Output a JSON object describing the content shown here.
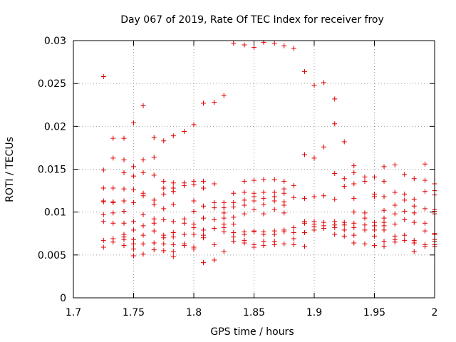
{
  "chart_data": {
    "type": "scatter",
    "title": "Day 067 of 2019, Rate Of TEC Index for receiver froy",
    "xlabel": "GPS time / hours",
    "ylabel": "ROTI / TECUs",
    "xlim": [
      1.7,
      2.0
    ],
    "ylim": [
      0,
      0.03
    ],
    "xticks": [
      1.7,
      1.75,
      1.8,
      1.85,
      1.9,
      1.95,
      2.0
    ],
    "xtick_labels": [
      "1.7",
      "1.75",
      "1.8",
      "1.85",
      "1.9",
      "1.95",
      "2"
    ],
    "yticks": [
      0,
      0.005,
      0.01,
      0.015,
      0.02,
      0.025,
      0.03
    ],
    "ytick_labels": [
      "0",
      "0.005",
      "0.01",
      "0.015",
      "0.02",
      "0.025",
      "0.03"
    ],
    "grid": true,
    "marker": "plus",
    "color": "#e00000",
    "series": [
      {
        "name": "ROTI",
        "points": [
          [
            1.725,
            0.0258
          ],
          [
            1.725,
            0.0149
          ],
          [
            1.725,
            0.0128
          ],
          [
            1.725,
            0.0113
          ],
          [
            1.725,
            0.0112
          ],
          [
            1.725,
            0.0097
          ],
          [
            1.725,
            0.0089
          ],
          [
            1.725,
            0.0067
          ],
          [
            1.725,
            0.0059
          ],
          [
            1.733,
            0.0186
          ],
          [
            1.733,
            0.0163
          ],
          [
            1.733,
            0.0128
          ],
          [
            1.733,
            0.0112
          ],
          [
            1.733,
            0.0111
          ],
          [
            1.733,
            0.0099
          ],
          [
            1.733,
            0.0087
          ],
          [
            1.733,
            0.0069
          ],
          [
            1.733,
            0.0065
          ],
          [
            1.742,
            0.0186
          ],
          [
            1.742,
            0.0161
          ],
          [
            1.742,
            0.0146
          ],
          [
            1.742,
            0.0127
          ],
          [
            1.742,
            0.0113
          ],
          [
            1.742,
            0.0101
          ],
          [
            1.742,
            0.0087
          ],
          [
            1.742,
            0.0074
          ],
          [
            1.742,
            0.0071
          ],
          [
            1.742,
            0.0068
          ],
          [
            1.742,
            0.0061
          ],
          [
            1.75,
            0.0204
          ],
          [
            1.75,
            0.0153
          ],
          [
            1.75,
            0.0142
          ],
          [
            1.75,
            0.0126
          ],
          [
            1.75,
            0.0111
          ],
          [
            1.75,
            0.0089
          ],
          [
            1.75,
            0.0079
          ],
          [
            1.75,
            0.0068
          ],
          [
            1.75,
            0.0063
          ],
          [
            1.75,
            0.0057
          ],
          [
            1.75,
            0.0049
          ],
          [
            1.758,
            0.0224
          ],
          [
            1.758,
            0.0161
          ],
          [
            1.758,
            0.0146
          ],
          [
            1.758,
            0.0122
          ],
          [
            1.758,
            0.0119
          ],
          [
            1.758,
            0.0097
          ],
          [
            1.758,
            0.0084
          ],
          [
            1.758,
            0.0073
          ],
          [
            1.758,
            0.0063
          ],
          [
            1.758,
            0.0051
          ],
          [
            1.767,
            0.0187
          ],
          [
            1.767,
            0.0164
          ],
          [
            1.767,
            0.0143
          ],
          [
            1.767,
            0.0114
          ],
          [
            1.767,
            0.0109
          ],
          [
            1.767,
            0.0092
          ],
          [
            1.767,
            0.0087
          ],
          [
            1.767,
            0.0078
          ],
          [
            1.767,
            0.0064
          ],
          [
            1.767,
            0.0056
          ],
          [
            1.775,
            0.0183
          ],
          [
            1.775,
            0.0136
          ],
          [
            1.775,
            0.0128
          ],
          [
            1.775,
            0.0121
          ],
          [
            1.775,
            0.0104
          ],
          [
            1.775,
            0.0091
          ],
          [
            1.775,
            0.0073
          ],
          [
            1.775,
            0.007
          ],
          [
            1.775,
            0.0063
          ],
          [
            1.775,
            0.0055
          ],
          [
            1.783,
            0.0189
          ],
          [
            1.783,
            0.0134
          ],
          [
            1.783,
            0.0128
          ],
          [
            1.783,
            0.0124
          ],
          [
            1.783,
            0.0109
          ],
          [
            1.783,
            0.0089
          ],
          [
            1.783,
            0.0076
          ],
          [
            1.783,
            0.0071
          ],
          [
            1.783,
            0.0062
          ],
          [
            1.783,
            0.0054
          ],
          [
            1.783,
            0.0048
          ],
          [
            1.792,
            0.0194
          ],
          [
            1.792,
            0.0134
          ],
          [
            1.792,
            0.0131
          ],
          [
            1.792,
            0.0092
          ],
          [
            1.792,
            0.0087
          ],
          [
            1.792,
            0.0074
          ],
          [
            1.792,
            0.0063
          ],
          [
            1.792,
            0.0061
          ],
          [
            1.8,
            0.0202
          ],
          [
            1.8,
            0.0136
          ],
          [
            1.8,
            0.0132
          ],
          [
            1.8,
            0.0113
          ],
          [
            1.8,
            0.0101
          ],
          [
            1.8,
            0.0086
          ],
          [
            1.8,
            0.0082
          ],
          [
            1.8,
            0.0074
          ],
          [
            1.8,
            0.0059
          ],
          [
            1.8,
            0.0057
          ],
          [
            1.808,
            0.0227
          ],
          [
            1.808,
            0.0136
          ],
          [
            1.808,
            0.0128
          ],
          [
            1.808,
            0.0107
          ],
          [
            1.808,
            0.0093
          ],
          [
            1.808,
            0.0079
          ],
          [
            1.808,
            0.0073
          ],
          [
            1.808,
            0.007
          ],
          [
            1.808,
            0.0041
          ],
          [
            1.817,
            0.0228
          ],
          [
            1.817,
            0.0133
          ],
          [
            1.817,
            0.0111
          ],
          [
            1.817,
            0.0105
          ],
          [
            1.817,
            0.0091
          ],
          [
            1.817,
            0.0081
          ],
          [
            1.817,
            0.0062
          ],
          [
            1.817,
            0.0044
          ],
          [
            1.825,
            0.0236
          ],
          [
            1.825,
            0.0111
          ],
          [
            1.825,
            0.0105
          ],
          [
            1.825,
            0.0099
          ],
          [
            1.825,
            0.0093
          ],
          [
            1.825,
            0.0086
          ],
          [
            1.825,
            0.0082
          ],
          [
            1.825,
            0.0077
          ],
          [
            1.825,
            0.0054
          ],
          [
            1.833,
            0.0297
          ],
          [
            1.833,
            0.0122
          ],
          [
            1.833,
            0.0111
          ],
          [
            1.833,
            0.0106
          ],
          [
            1.833,
            0.0094
          ],
          [
            1.833,
            0.0086
          ],
          [
            1.833,
            0.0076
          ],
          [
            1.833,
            0.0071
          ],
          [
            1.833,
            0.0066
          ],
          [
            1.842,
            0.0295
          ],
          [
            1.842,
            0.0136
          ],
          [
            1.842,
            0.0123
          ],
          [
            1.842,
            0.0114
          ],
          [
            1.842,
            0.0108
          ],
          [
            1.842,
            0.0098
          ],
          [
            1.842,
            0.0077
          ],
          [
            1.842,
            0.0074
          ],
          [
            1.842,
            0.0067
          ],
          [
            1.842,
            0.0064
          ],
          [
            1.85,
            0.0292
          ],
          [
            1.85,
            0.0137
          ],
          [
            1.85,
            0.0122
          ],
          [
            1.85,
            0.0118
          ],
          [
            1.85,
            0.0113
          ],
          [
            1.85,
            0.0103
          ],
          [
            1.85,
            0.0078
          ],
          [
            1.85,
            0.0077
          ],
          [
            1.85,
            0.0062
          ],
          [
            1.85,
            0.0059
          ],
          [
            1.858,
            0.0298
          ],
          [
            1.858,
            0.0138
          ],
          [
            1.858,
            0.0123
          ],
          [
            1.858,
            0.0116
          ],
          [
            1.858,
            0.0109
          ],
          [
            1.858,
            0.0098
          ],
          [
            1.858,
            0.0077
          ],
          [
            1.858,
            0.0074
          ],
          [
            1.858,
            0.0066
          ],
          [
            1.858,
            0.0061
          ],
          [
            1.867,
            0.0297
          ],
          [
            1.867,
            0.0138
          ],
          [
            1.867,
            0.0123
          ],
          [
            1.867,
            0.0118
          ],
          [
            1.867,
            0.0113
          ],
          [
            1.867,
            0.0103
          ],
          [
            1.867,
            0.0078
          ],
          [
            1.867,
            0.0074
          ],
          [
            1.867,
            0.0066
          ],
          [
            1.867,
            0.0062
          ],
          [
            1.875,
            0.0294
          ],
          [
            1.875,
            0.0136
          ],
          [
            1.875,
            0.0127
          ],
          [
            1.875,
            0.0122
          ],
          [
            1.875,
            0.0112
          ],
          [
            1.875,
            0.0108
          ],
          [
            1.875,
            0.0099
          ],
          [
            1.875,
            0.0079
          ],
          [
            1.875,
            0.0077
          ],
          [
            1.875,
            0.0063
          ],
          [
            1.883,
            0.0291
          ],
          [
            1.883,
            0.0131
          ],
          [
            1.883,
            0.0117
          ],
          [
            1.883,
            0.0082
          ],
          [
            1.883,
            0.0076
          ],
          [
            1.883,
            0.0069
          ],
          [
            1.883,
            0.0062
          ],
          [
            1.892,
            0.0264
          ],
          [
            1.892,
            0.0167
          ],
          [
            1.892,
            0.0116
          ],
          [
            1.892,
            0.0089
          ],
          [
            1.892,
            0.0087
          ],
          [
            1.892,
            0.0076
          ],
          [
            1.892,
            0.006
          ],
          [
            1.9,
            0.0248
          ],
          [
            1.9,
            0.0163
          ],
          [
            1.9,
            0.0118
          ],
          [
            1.9,
            0.0089
          ],
          [
            1.9,
            0.0086
          ],
          [
            1.9,
            0.0083
          ],
          [
            1.9,
            0.0079
          ],
          [
            1.908,
            0.0251
          ],
          [
            1.908,
            0.0176
          ],
          [
            1.908,
            0.0119
          ],
          [
            1.908,
            0.0088
          ],
          [
            1.908,
            0.0084
          ],
          [
            1.908,
            0.0081
          ],
          [
            1.917,
            0.0232
          ],
          [
            1.917,
            0.0203
          ],
          [
            1.917,
            0.0145
          ],
          [
            1.917,
            0.0115
          ],
          [
            1.917,
            0.0089
          ],
          [
            1.917,
            0.0085
          ],
          [
            1.917,
            0.0082
          ],
          [
            1.917,
            0.0074
          ],
          [
            1.925,
            0.0182
          ],
          [
            1.925,
            0.0139
          ],
          [
            1.925,
            0.013
          ],
          [
            1.925,
            0.0088
          ],
          [
            1.925,
            0.0085
          ],
          [
            1.925,
            0.0079
          ],
          [
            1.925,
            0.0072
          ],
          [
            1.933,
            0.0154
          ],
          [
            1.933,
            0.0146
          ],
          [
            1.933,
            0.0133
          ],
          [
            1.933,
            0.0116
          ],
          [
            1.933,
            0.01
          ],
          [
            1.933,
            0.0087
          ],
          [
            1.933,
            0.0082
          ],
          [
            1.933,
            0.0073
          ],
          [
            1.933,
            0.0064
          ],
          [
            1.942,
            0.0141
          ],
          [
            1.942,
            0.0136
          ],
          [
            1.942,
            0.0099
          ],
          [
            1.942,
            0.0093
          ],
          [
            1.942,
            0.0085
          ],
          [
            1.942,
            0.0079
          ],
          [
            1.942,
            0.0063
          ],
          [
            1.95,
            0.0141
          ],
          [
            1.95,
            0.0121
          ],
          [
            1.95,
            0.0118
          ],
          [
            1.95,
            0.0088
          ],
          [
            1.95,
            0.0084
          ],
          [
            1.95,
            0.0079
          ],
          [
            1.95,
            0.0072
          ],
          [
            1.95,
            0.0061
          ],
          [
            1.958,
            0.0153
          ],
          [
            1.958,
            0.0136
          ],
          [
            1.958,
            0.0118
          ],
          [
            1.958,
            0.0102
          ],
          [
            1.958,
            0.0093
          ],
          [
            1.958,
            0.0088
          ],
          [
            1.958,
            0.0084
          ],
          [
            1.958,
            0.0079
          ],
          [
            1.958,
            0.0066
          ],
          [
            1.958,
            0.006
          ],
          [
            1.967,
            0.0155
          ],
          [
            1.967,
            0.0123
          ],
          [
            1.967,
            0.0108
          ],
          [
            1.967,
            0.0098
          ],
          [
            1.967,
            0.0086
          ],
          [
            1.967,
            0.0072
          ],
          [
            1.967,
            0.0068
          ],
          [
            1.967,
            0.0065
          ],
          [
            1.975,
            0.0144
          ],
          [
            1.975,
            0.0121
          ],
          [
            1.975,
            0.0114
          ],
          [
            1.975,
            0.0101
          ],
          [
            1.975,
            0.0091
          ],
          [
            1.975,
            0.0073
          ],
          [
            1.975,
            0.0067
          ],
          [
            1.983,
            0.0139
          ],
          [
            1.983,
            0.0115
          ],
          [
            1.983,
            0.0107
          ],
          [
            1.983,
            0.0099
          ],
          [
            1.983,
            0.0088
          ],
          [
            1.983,
            0.0067
          ],
          [
            1.983,
            0.0064
          ],
          [
            1.983,
            0.0054
          ],
          [
            1.992,
            0.0156
          ],
          [
            1.992,
            0.0137
          ],
          [
            1.992,
            0.0124
          ],
          [
            1.992,
            0.0104
          ],
          [
            1.992,
            0.0087
          ],
          [
            1.992,
            0.0078
          ],
          [
            1.992,
            0.0062
          ],
          [
            1.992,
            0.006
          ],
          [
            2.0,
            0.0133
          ],
          [
            2.0,
            0.012
          ],
          [
            2.0,
            0.0103
          ],
          [
            2.0,
            0.0098
          ],
          [
            2.0,
            0.0074
          ],
          [
            2.0,
            0.0066
          ],
          [
            2.0,
            0.0062
          ],
          [
            2.0,
            0.006
          ],
          [
            2.0,
            0.0125
          ],
          [
            2.0,
            0.0101
          ],
          [
            2.0,
            0.0075
          ],
          [
            2.0,
            0.0068
          ]
        ]
      }
    ]
  }
}
